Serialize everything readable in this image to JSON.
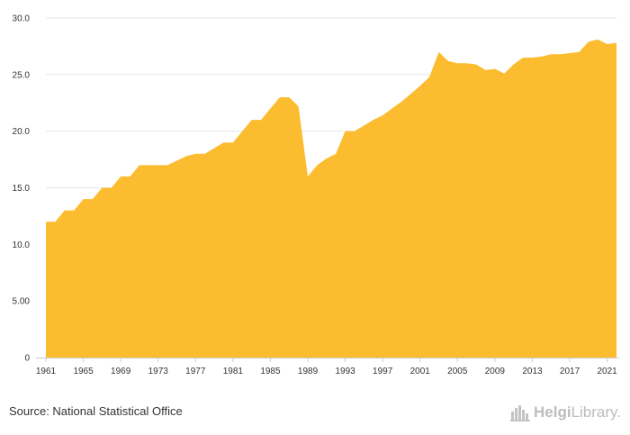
{
  "chart_data": {
    "type": "area",
    "title": "",
    "xlabel": "",
    "ylabel": "",
    "color": "#FBBC2F",
    "xlim": [
      1961,
      2022
    ],
    "ylim": [
      0,
      30
    ],
    "grid": true,
    "yticks": [
      0,
      5,
      10,
      15,
      20,
      25,
      30
    ],
    "ytick_labels": [
      "0",
      "5.00",
      "10.0",
      "15.0",
      "20.0",
      "25.0",
      "30.0"
    ],
    "xticks": [
      1961,
      1965,
      1969,
      1973,
      1977,
      1981,
      1985,
      1989,
      1993,
      1997,
      2001,
      2005,
      2009,
      2013,
      2017,
      2021
    ],
    "xtick_labels": [
      "1961",
      "1965",
      "1969",
      "1973",
      "1977",
      "1981",
      "1985",
      "1989",
      "1993",
      "1997",
      "2001",
      "2005",
      "2009",
      "2013",
      "2017",
      "2021"
    ],
    "x": [
      1961,
      1962,
      1963,
      1964,
      1965,
      1966,
      1967,
      1968,
      1969,
      1970,
      1971,
      1972,
      1973,
      1974,
      1975,
      1976,
      1977,
      1978,
      1979,
      1980,
      1981,
      1982,
      1983,
      1984,
      1985,
      1986,
      1987,
      1988,
      1989,
      1990,
      1991,
      1992,
      1993,
      1994,
      1995,
      1996,
      1997,
      1998,
      1999,
      2000,
      2001,
      2002,
      2003,
      2004,
      2005,
      2006,
      2007,
      2008,
      2009,
      2010,
      2011,
      2012,
      2013,
      2014,
      2015,
      2016,
      2017,
      2018,
      2019,
      2020,
      2021,
      2022
    ],
    "values": [
      12,
      12,
      13,
      13,
      14,
      14,
      15,
      15,
      16,
      16,
      17,
      17,
      17,
      17,
      17.4,
      17.8,
      18,
      18,
      18.5,
      19,
      19,
      20,
      21,
      21,
      22,
      23,
      23,
      22.2,
      16,
      17,
      17.6,
      18,
      20,
      20,
      20.5,
      21,
      21.4,
      22,
      22.6,
      23.3,
      24,
      24.8,
      27,
      26.2,
      26,
      26,
      25.9,
      25.4,
      25.5,
      25.1,
      25.9,
      26.5,
      26.5,
      26.6,
      26.8,
      26.8,
      26.9,
      27,
      27.9,
      28.1,
      27.7,
      27.8
    ]
  },
  "footer": {
    "source": "Source: National Statistical Office",
    "logo_name": "helgilibrary-logo",
    "logo_text_bold": "Helgi",
    "logo_text_rest": "Library."
  }
}
